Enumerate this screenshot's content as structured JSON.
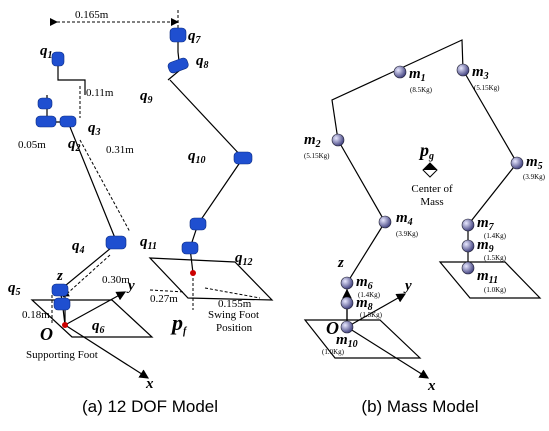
{
  "left": {
    "caption": "(a) 12 DOF Model",
    "joints": [
      {
        "symbol": "q",
        "sub": "1"
      },
      {
        "symbol": "q",
        "sub": "7"
      },
      {
        "symbol": "q",
        "sub": "8"
      },
      {
        "symbol": "q",
        "sub": "9"
      },
      {
        "symbol": "q",
        "sub": "3"
      },
      {
        "symbol": "q",
        "sub": "2"
      },
      {
        "symbol": "q",
        "sub": "10"
      },
      {
        "symbol": "q",
        "sub": "4"
      },
      {
        "symbol": "q",
        "sub": "11"
      },
      {
        "symbol": "q",
        "sub": "12"
      },
      {
        "symbol": "q",
        "sub": "5"
      },
      {
        "symbol": "q",
        "sub": "6"
      }
    ],
    "dimensions": [
      "0.165m",
      "0.11m",
      "0.05m",
      "0.31m",
      "0.30m",
      "0.27m",
      "0.155m",
      "0.18m"
    ],
    "axes": {
      "z": "z",
      "y": "y",
      "x": "x",
      "origin": "O"
    },
    "swing_foot": {
      "symbol": "p",
      "sub": "f",
      "label": [
        "Swing Foot",
        "Position"
      ]
    },
    "supporting_foot": "Supporting Foot"
  },
  "right": {
    "caption": "(b) Mass Model",
    "masses": [
      {
        "symbol": "m",
        "sub": "1",
        "mass": "(8.5Kg)"
      },
      {
        "symbol": "m",
        "sub": "3",
        "mass": "(5.15Kg)"
      },
      {
        "symbol": "m",
        "sub": "2",
        "mass": "(5.15Kg)"
      },
      {
        "symbol": "m",
        "sub": "5",
        "mass": "(3.9Kg)"
      },
      {
        "symbol": "m",
        "sub": "4",
        "mass": "(3.9Kg)"
      },
      {
        "symbol": "m",
        "sub": "7",
        "mass": "(1.4Kg)"
      },
      {
        "symbol": "m",
        "sub": "9",
        "mass": "(1.5Kg)"
      },
      {
        "symbol": "m",
        "sub": "11",
        "mass": "(1.0Kg)"
      },
      {
        "symbol": "m",
        "sub": "6",
        "mass": "(1.4Kg)"
      },
      {
        "symbol": "m",
        "sub": "8",
        "mass": "(1.5Kg)"
      },
      {
        "symbol": "m",
        "sub": "10",
        "mass": "(1.0Kg)"
      }
    ],
    "center_of_mass": {
      "symbol": "p",
      "sub": "g",
      "label": [
        "Center of",
        "Mass"
      ]
    },
    "axes": {
      "z": "z",
      "y": "y",
      "x": "x",
      "origin": "O"
    }
  }
}
